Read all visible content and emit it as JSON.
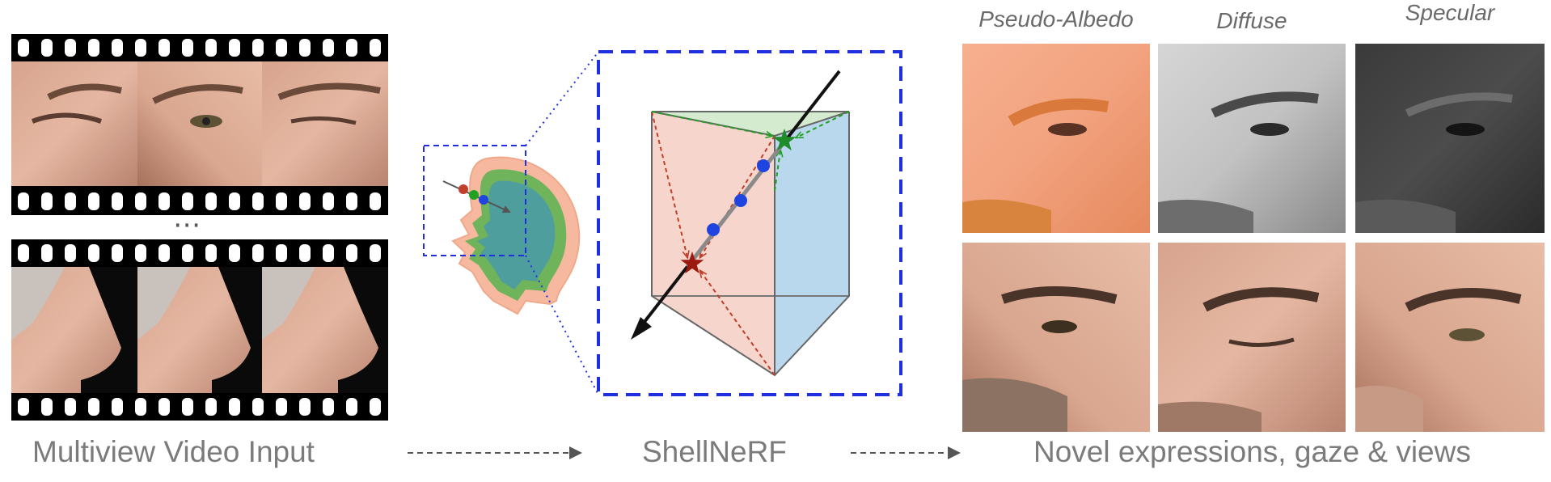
{
  "stages": {
    "input": "Multiview Video Input",
    "model": "ShellNeRF",
    "output": "Novel expressions, gaze & views"
  },
  "film": {
    "separator": "⋯"
  },
  "output_columns": [
    "Pseudo-Albedo",
    "Diffuse",
    "Specular"
  ],
  "colors": {
    "label_gray": "#7b7b7b",
    "zoom_blue": "#1f2fe0",
    "outer_shell": "#f6b9a0",
    "middle_shell": "#6fb35a",
    "inner_head": "#4f9e9e",
    "prism_left": "#f6d5cc",
    "prism_right": "#b9d8ee",
    "prism_top": "#d5ebcf",
    "ray_red": "#c0402a",
    "ray_green": "#22a022",
    "sample_blue": "#1f44e0",
    "star_red": "#9a1a10",
    "star_green": "#1e8c28"
  }
}
